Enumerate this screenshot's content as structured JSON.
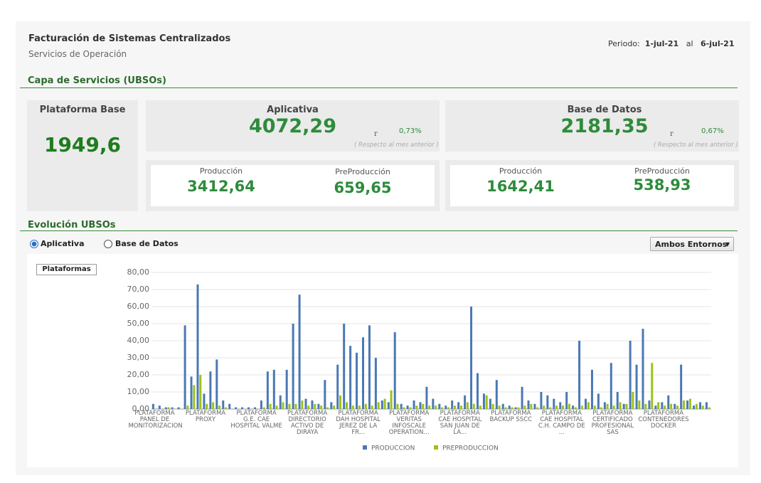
{
  "header": {
    "title": "Facturación de Sistemas Centralizados",
    "subtitle": "Servicios de Operación",
    "period_label": "Periodo:",
    "period_from": "1-jul-21",
    "period_sep": "al",
    "period_to": "6-jul-21"
  },
  "section1": "Capa de Servicios (UBSOs)",
  "kpis": {
    "base": {
      "title": "Plataforma Base",
      "value": "1949,6"
    },
    "aplicativa": {
      "title": "Aplicativa",
      "value": "4072,29",
      "arrow": "r",
      "change": "0,73%",
      "note": "( Respecto al mes anterior )",
      "prod_label": "Producción",
      "prod_value": "3412,64",
      "preprod_label": "PreProducción",
      "preprod_value": "659,65"
    },
    "bd": {
      "title": "Base de Datos",
      "value": "2181,35",
      "arrow": "r",
      "change": "0,67%",
      "note": "( Respecto al mes anterior )",
      "prod_label": "Producción",
      "prod_value": "1642,41",
      "preprod_label": "PreProducción",
      "preprod_value": "538,93"
    }
  },
  "section2": "Evolución UBSOs",
  "controls": {
    "radio1": "Aplicativa",
    "radio2": "Base de Datos",
    "dropdown": "Ambos Entornos",
    "button": "Plataformas"
  },
  "chart_data": {
    "type": "bar",
    "categories": [
      "PLATAFORMA PANEL DE MONITORIZACION",
      null,
      null,
      null,
      null,
      null,
      null,
      null,
      "PLATAFORMA PROXY",
      null,
      null,
      null,
      null,
      null,
      null,
      null,
      "PLATAFORMA G.E. CAE HOSPITAL VALME",
      null,
      null,
      null,
      null,
      null,
      null,
      null,
      "PLATAFORMA DIRECTORIO ACTIVO DE DIRAYA",
      null,
      null,
      null,
      null,
      null,
      null,
      null,
      "PLATAFORMA DAH HOSPITAL JEREZ DE LA FR...",
      null,
      null,
      null,
      null,
      null,
      null,
      null,
      "PLATAFORMA VERITAS INFOSCALE OPERATION...",
      null,
      null,
      null,
      null,
      null,
      null,
      null,
      "PLATAFORMA CAE HOSPITAL SAN JUAN DE LA...",
      null,
      null,
      null,
      null,
      null,
      null,
      null,
      "PLATAFORMA BACKUP SSCC",
      null,
      null,
      null,
      null,
      null,
      null,
      null,
      "PLATAFORMA CAE HOSPITAL C.H. CAMPO DE ...",
      null,
      null,
      null,
      null,
      null,
      null,
      null,
      "PLATAFORMA CERTIFICADO PROFESIONAL SAS",
      null,
      null,
      null,
      null,
      null,
      null,
      null,
      "PLATAFORMA CONTENEDORES DOCKER",
      null,
      null,
      null,
      null,
      null,
      null,
      null
    ],
    "series": [
      {
        "name": "PRODUCCION",
        "color": "#4a78b4",
        "values": [
          3,
          2,
          1,
          1,
          1,
          49,
          19,
          73,
          9,
          22,
          29,
          5,
          3,
          1,
          1,
          1,
          1,
          5,
          22,
          23,
          8,
          23,
          50,
          67,
          6,
          5,
          3,
          17,
          4,
          26,
          50,
          37,
          33,
          42,
          49,
          30,
          5,
          4,
          45,
          3,
          2,
          5,
          4,
          13,
          6,
          3,
          2,
          5,
          4,
          8,
          60,
          21,
          9,
          6,
          17,
          3,
          2,
          1,
          13,
          5,
          3,
          10,
          8,
          6,
          4,
          10,
          2,
          40,
          6,
          23,
          9,
          4,
          27,
          10,
          3,
          40,
          26,
          47,
          5,
          2,
          4,
          8,
          3,
          26,
          5,
          2,
          4,
          4
        ]
      },
      {
        "name": "PREPRODUCCION",
        "color": "#9cc21a",
        "values": [
          0,
          0,
          1,
          0,
          0,
          2,
          14,
          20,
          3,
          4,
          2,
          1,
          0,
          0,
          0,
          0,
          0,
          1,
          3,
          2,
          4,
          3,
          3,
          5,
          2,
          3,
          2,
          1,
          2,
          8,
          4,
          2,
          2,
          3,
          2,
          4,
          6,
          11,
          3,
          1,
          1,
          2,
          3,
          2,
          2,
          1,
          1,
          2,
          2,
          4,
          3,
          2,
          8,
          3,
          2,
          1,
          1,
          1,
          2,
          3,
          1,
          2,
          1,
          2,
          2,
          3,
          1,
          2,
          4,
          2,
          1,
          3,
          2,
          4,
          3,
          10,
          5,
          3,
          27,
          4,
          2,
          3,
          2,
          5,
          6,
          3,
          2,
          1
        ]
      }
    ],
    "ylim": [
      0,
      80
    ],
    "yticks": [
      {
        "value": 0,
        "label": "0,00"
      },
      {
        "value": 10,
        "label": "10,00"
      },
      {
        "value": 20,
        "label": "20,00"
      },
      {
        "value": 30,
        "label": "30,00"
      },
      {
        "value": 40,
        "label": "40,00"
      },
      {
        "value": 50,
        "label": "50,00"
      },
      {
        "value": 60,
        "label": "60,00"
      },
      {
        "value": 70,
        "label": "70,00"
      },
      {
        "value": 80,
        "label": "80,00"
      }
    ],
    "grid": true
  }
}
